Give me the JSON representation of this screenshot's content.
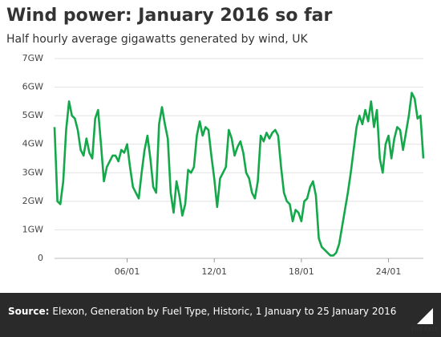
{
  "chart_data": {
    "type": "line",
    "title": "Wind power: January 2016 so far",
    "subtitle": "Half hourly average gigawatts generated by wind, UK",
    "x": [
      1,
      1.2,
      1.4,
      1.6,
      1.8,
      2,
      2.2,
      2.4,
      2.6,
      2.8,
      3,
      3.2,
      3.4,
      3.6,
      3.8,
      4,
      4.2,
      4.4,
      4.6,
      4.8,
      5,
      5.2,
      5.4,
      5.6,
      5.8,
      6,
      6.2,
      6.4,
      6.6,
      6.8,
      7,
      7.2,
      7.4,
      7.6,
      7.8,
      8,
      8.2,
      8.4,
      8.6,
      8.8,
      9,
      9.2,
      9.4,
      9.6,
      9.8,
      10,
      10.2,
      10.4,
      10.6,
      10.8,
      11,
      11.2,
      11.4,
      11.6,
      11.8,
      12,
      12.2,
      12.4,
      12.6,
      12.8,
      13,
      13.2,
      13.4,
      13.6,
      13.8,
      14,
      14.2,
      14.4,
      14.6,
      14.8,
      15,
      15.2,
      15.4,
      15.6,
      15.8,
      16,
      16.2,
      16.4,
      16.6,
      16.8,
      17,
      17.2,
      17.4,
      17.6,
      17.8,
      18,
      18.2,
      18.4,
      18.6,
      18.8,
      19,
      19.2,
      19.4,
      19.6,
      19.8,
      20,
      20.2,
      20.4,
      20.6,
      20.8,
      21,
      21.2,
      21.4,
      21.6,
      21.8,
      22,
      22.2,
      22.4,
      22.6,
      22.8,
      23,
      23.2,
      23.4,
      23.6,
      23.8,
      24,
      24.2,
      24.4,
      24.6,
      24.8,
      25,
      25.2,
      25.4,
      25.6,
      25.8,
      26,
      26.2,
      26.4
    ],
    "values": [
      4.6,
      2.0,
      1.9,
      2.7,
      4.5,
      5.5,
      5.0,
      4.9,
      4.5,
      3.8,
      3.6,
      4.2,
      3.7,
      3.5,
      4.9,
      5.2,
      4.0,
      2.7,
      3.2,
      3.4,
      3.6,
      3.6,
      3.4,
      3.8,
      3.7,
      4.0,
      3.2,
      2.5,
      2.3,
      2.1,
      3.0,
      3.8,
      4.3,
      3.5,
      2.5,
      2.3,
      4.7,
      5.3,
      4.7,
      4.2,
      2.3,
      1.6,
      2.7,
      2.2,
      1.5,
      1.9,
      3.1,
      3.0,
      3.2,
      4.3,
      4.8,
      4.3,
      4.6,
      4.5,
      3.6,
      2.8,
      1.8,
      2.8,
      3.0,
      3.2,
      4.5,
      4.2,
      3.6,
      3.9,
      4.1,
      3.7,
      3.0,
      2.8,
      2.3,
      2.1,
      2.7,
      4.3,
      4.1,
      4.4,
      4.2,
      4.4,
      4.5,
      4.3,
      3.2,
      2.3,
      2.0,
      1.9,
      1.3,
      1.7,
      1.6,
      1.3,
      2.0,
      2.1,
      2.5,
      2.7,
      2.2,
      0.7,
      0.4,
      0.3,
      0.2,
      0.1,
      0.1,
      0.2,
      0.5,
      1.1,
      1.7,
      2.3,
      3.0,
      3.8,
      4.6,
      5.0,
      4.7,
      5.2,
      4.8,
      5.5,
      4.6,
      5.2,
      3.5,
      3.0,
      4.0,
      4.3,
      3.5,
      4.2,
      4.6,
      4.5,
      3.8,
      4.4,
      5.0,
      5.8,
      5.6,
      4.9,
      5.0,
      3.5
    ],
    "color": "#14a84b",
    "xlim": [
      1,
      26.4
    ],
    "xticks": [
      {
        "value": 6,
        "label": "06/01"
      },
      {
        "value": 12,
        "label": "12/01"
      },
      {
        "value": 18,
        "label": "18/01"
      },
      {
        "value": 24,
        "label": "24/01"
      }
    ],
    "ylim": [
      0,
      7
    ],
    "yticks": [
      0,
      {
        "value": 1,
        "label": "1GW"
      },
      {
        "value": 2,
        "label": "2GW"
      },
      {
        "value": 3,
        "label": "3GW"
      },
      {
        "value": 4,
        "label": "4GW"
      },
      {
        "value": 5,
        "label": "5GW"
      },
      {
        "value": 6,
        "label": "6GW"
      },
      {
        "value": 7,
        "label": "7GW"
      }
    ],
    "grid": true
  },
  "footer": {
    "source_label": "Source:",
    "source": "Elexon, Generation by Fuel Type, Historic, 1 January to 25 January 2016",
    "logo": "Full Fact"
  }
}
